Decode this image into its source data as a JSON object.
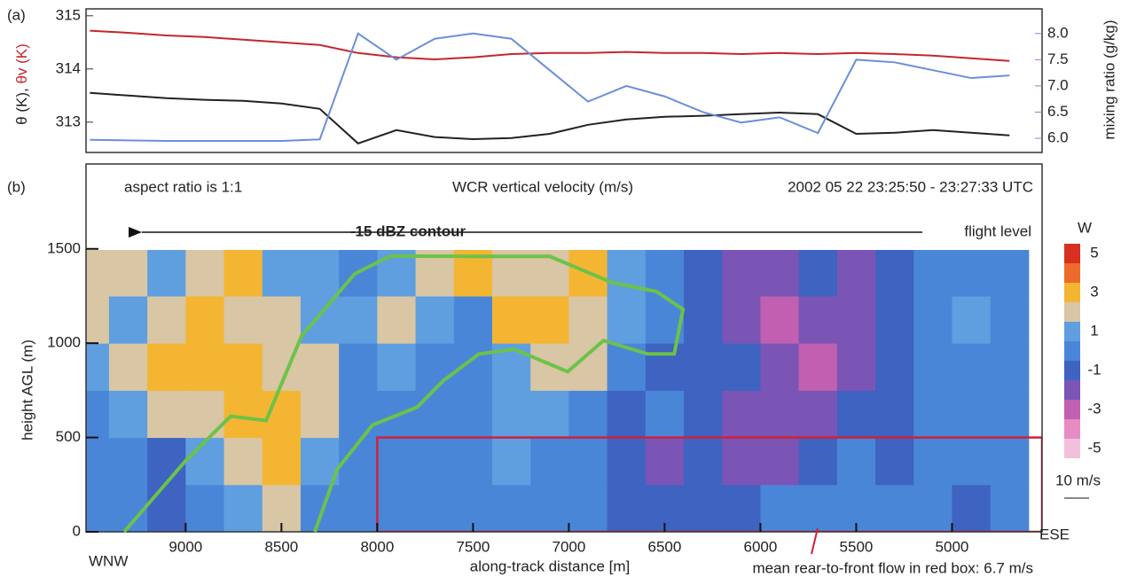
{
  "chart_data": [
    {
      "type": "line",
      "panel_label": "(a)",
      "x": [
        9500,
        9300,
        9100,
        8900,
        8700,
        8500,
        8300,
        8100,
        7900,
        7700,
        7500,
        7300,
        7100,
        6900,
        6700,
        6500,
        6300,
        6100,
        5900,
        5700,
        5500,
        5300,
        5100,
        4900,
        4700
      ],
      "xlim": [
        9520,
        4530
      ],
      "ylim": [
        312.43,
        315.13
      ],
      "yticks": [
        313,
        314,
        315
      ],
      "y2lim": [
        5.73,
        8.47
      ],
      "y2ticks": [
        {
          "value": 6,
          "label": "6.0"
        },
        6.5,
        {
          "value": 7,
          "label": "7.0"
        },
        7.5,
        {
          "value": 8,
          "label": "8.0"
        }
      ],
      "ylabel": [
        "θ (K),",
        "θv (K)"
      ],
      "ylabel_colors": [
        "#222222",
        "#c8242c"
      ],
      "y2label": "mixing ratio (g/kg)",
      "y2label_color": "#6a8fd8",
      "series": [
        {
          "color": "#c8242c",
          "values": [
            314.72,
            314.68,
            314.63,
            314.6,
            314.55,
            314.5,
            314.45,
            314.3,
            314.22,
            314.18,
            314.22,
            314.28,
            314.3,
            314.3,
            314.32,
            314.3,
            314.3,
            314.28,
            314.3,
            314.28,
            314.3,
            314.28,
            314.25,
            314.2,
            314.15
          ]
        },
        {
          "color": "#222222",
          "values": [
            313.55,
            313.5,
            313.45,
            313.42,
            313.4,
            313.35,
            313.25,
            312.6,
            312.85,
            312.72,
            312.68,
            312.7,
            312.78,
            312.95,
            313.05,
            313.1,
            313.12,
            313.15,
            313.18,
            313.15,
            312.78,
            312.8,
            312.85,
            312.8,
            312.75
          ]
        },
        {
          "color": "#6a8fd8",
          "axis": "y2",
          "values": [
            5.97,
            5.96,
            5.95,
            5.95,
            5.95,
            5.95,
            5.98,
            8.0,
            7.5,
            7.9,
            8.0,
            7.9,
            7.3,
            6.7,
            7.0,
            6.8,
            6.5,
            6.3,
            6.4,
            6.1,
            7.5,
            7.45,
            7.3,
            7.15,
            7.2
          ]
        }
      ]
    },
    {
      "type": "heatmap",
      "panel_label": "(b)",
      "title": "WCR vertical velocity (m/s)",
      "annotations": {
        "aspect": "aspect ratio is 1:1",
        "date": "2002 05 22   23:25:50 - 23:27:33 UTC",
        "contour": "-15 dBZ contour",
        "flight": "flight level",
        "left_end": "WNW",
        "right_end": "ESE",
        "mean_flow": "mean rear-to-front flow in red box: 6.7 m/s",
        "wind_scale": "10 m/s"
      },
      "xlabel": "along-track distance [m]",
      "ylabel": "height AGL (m)",
      "xlim": [
        9520,
        4530
      ],
      "xticks": [
        9000,
        8500,
        8000,
        7500,
        7000,
        6500,
        6000,
        5500,
        5000
      ],
      "ylim": [
        0,
        1950
      ],
      "yticks": [
        0,
        500,
        1000,
        1500
      ],
      "x": [
        9500,
        9300,
        9100,
        8900,
        8700,
        8500,
        8300,
        8100,
        7900,
        7700,
        7500,
        7300,
        7100,
        6900,
        6700,
        6500,
        6300,
        6100,
        5900,
        5700,
        5500,
        5300,
        5100,
        4900,
        4700
      ],
      "y": [
        125,
        375,
        625,
        875,
        1125,
        1375
      ],
      "z": [
        [
          0,
          0,
          -1,
          0,
          1,
          2,
          0,
          0,
          0,
          0,
          0,
          0,
          0,
          0,
          -1,
          -1,
          -1,
          -1,
          0,
          0,
          0,
          0,
          0,
          -1,
          0
        ],
        [
          0,
          0,
          -1,
          1,
          2,
          3,
          1,
          0,
          0,
          0,
          0,
          1,
          0,
          0,
          -1,
          -2,
          -1,
          -2,
          -2,
          -1,
          0,
          -1,
          0,
          0,
          0
        ],
        [
          0,
          1,
          2,
          2,
          3,
          3,
          2,
          0,
          0,
          0,
          0,
          1,
          1,
          0,
          -1,
          0,
          -1,
          -2,
          -2,
          -2,
          -1,
          -1,
          0,
          0,
          0
        ],
        [
          1,
          2,
          3,
          3,
          3,
          2,
          2,
          0,
          1,
          0,
          0,
          1,
          2,
          2,
          0,
          -1,
          -1,
          -1,
          -2,
          -3,
          -2,
          -1,
          0,
          0,
          0
        ],
        [
          2,
          1,
          2,
          3,
          2,
          2,
          1,
          1,
          2,
          1,
          0,
          3,
          3,
          2,
          1,
          0,
          -1,
          -2,
          -3,
          -2,
          -2,
          -1,
          0,
          1,
          0
        ],
        [
          2,
          2,
          1,
          2,
          3,
          1,
          1,
          0,
          1,
          2,
          3,
          2,
          2,
          3,
          1,
          0,
          -1,
          -2,
          -2,
          -1,
          -2,
          -1,
          0,
          0,
          0
        ]
      ],
      "colorbar": {
        "label": "W",
        "levels": [
          5,
          4,
          3,
          2,
          1,
          0,
          -1,
          -2,
          -3,
          -4,
          -5
        ],
        "colors": [
          "#d73020",
          "#ee6a2a",
          "#f4b632",
          "#d8c6a4",
          "#5f9fe0",
          "#4a86d8",
          "#3e63c0",
          "#7a55b5",
          "#c160b0",
          "#e68cc5",
          "#f3c0dc"
        ],
        "ticks": [
          5,
          3,
          1,
          -1,
          -3,
          -5
        ]
      },
      "contour": {
        "color": "#6cc24a",
        "x": [
          9321,
          9000,
          8765,
          8580,
          8395,
          8117,
          7932,
          7515,
          7099,
          6774,
          6543,
          6404,
          6450,
          6589,
          6819,
          7006,
          7284,
          7469,
          7654,
          7793,
          8025,
          8210,
          8326
        ],
        "y": [
          0,
          377,
          613,
          590,
          1038,
          1368,
          1462,
          1460,
          1460,
          1321,
          1274,
          1179,
          943,
          943,
          1014,
          849,
          967,
          943,
          802,
          660,
          566,
          330,
          0
        ]
      },
      "box": {
        "color": "#d0203a",
        "x": [
          8000,
          4530
        ],
        "y": [
          0,
          500
        ]
      }
    }
  ]
}
